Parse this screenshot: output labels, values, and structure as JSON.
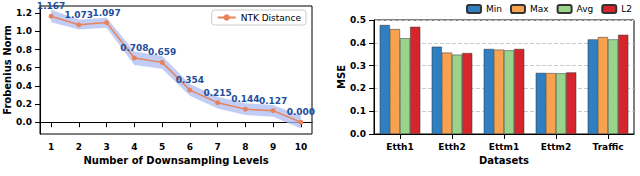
{
  "chart_data": [
    {
      "type": "line",
      "xlabel": "Number of Downsampling Levels",
      "ylabel": "Frobenius Norm",
      "x": [
        1,
        2,
        3,
        4,
        5,
        6,
        7,
        8,
        9,
        10
      ],
      "series": [
        {
          "name": "NTK Distance",
          "color": "#e8825a",
          "marker": "circle",
          "values": [
            1.167,
            1.073,
            1.097,
            0.708,
            0.659,
            0.354,
            0.215,
            0.144,
            0.127,
            0.0
          ],
          "value_labels": [
            "1.167",
            "1.073",
            "1.097",
            "0.708",
            "0.659",
            "0.354",
            "0.215",
            "0.144",
            "0.127",
            "0.000"
          ],
          "lower": [
            1.1,
            1.02,
            1.04,
            0.63,
            0.59,
            0.29,
            0.15,
            0.08,
            0.06,
            -0.07
          ],
          "upper": [
            1.24,
            1.13,
            1.15,
            0.78,
            0.73,
            0.42,
            0.28,
            0.21,
            0.19,
            0.07
          ]
        }
      ],
      "xlim": [
        0.6,
        10.4
      ],
      "xticks": [
        1,
        2,
        3,
        4,
        5,
        6,
        7,
        8,
        9,
        10
      ],
      "ylim": [
        -0.13,
        1.28
      ],
      "yticks": [
        {
          "value": 0,
          "label": "0.0"
        },
        {
          "value": 0.2,
          "label": "0.2"
        },
        {
          "value": 0.4,
          "label": "0.4"
        },
        {
          "value": 0.6,
          "label": "0.6"
        },
        {
          "value": 0.8,
          "label": "0.8"
        },
        {
          "value": 1.0,
          "label": "1.0"
        },
        {
          "value": 1.2,
          "label": "1.2"
        }
      ],
      "data_labels": true,
      "legend": "upper right",
      "grid": false
    },
    {
      "type": "bar",
      "xlabel": "Datasets",
      "ylabel": "MSE",
      "categories": [
        "Etth1",
        "Etth2",
        "Ettm1",
        "Ettm2",
        "Traffic"
      ],
      "series": [
        {
          "name": "Min",
          "color": "#2f7fc1",
          "values": [
            0.478,
            0.383,
            0.373,
            0.268,
            0.415
          ]
        },
        {
          "name": "Max",
          "color": "#f7a24f",
          "values": [
            0.46,
            0.357,
            0.37,
            0.267,
            0.425
          ]
        },
        {
          "name": "Avg",
          "color": "#9ad38a",
          "values": [
            0.42,
            0.348,
            0.367,
            0.266,
            0.415
          ]
        },
        {
          "name": "L2",
          "color": "#d7262b",
          "values": [
            0.47,
            0.355,
            0.373,
            0.27,
            0.435
          ]
        }
      ],
      "ylim": [
        0,
        0.5
      ],
      "yticks": [
        {
          "value": 0,
          "label": "0.0"
        },
        {
          "value": 0.1,
          "label": "0.1"
        },
        {
          "value": 0.2,
          "label": "0.2"
        },
        {
          "value": 0.3,
          "label": "0.3"
        },
        {
          "value": 0.4,
          "label": "0.4"
        },
        {
          "value": 0.5,
          "label": "0.5"
        }
      ],
      "legend": "upper right",
      "grid": true
    }
  ]
}
